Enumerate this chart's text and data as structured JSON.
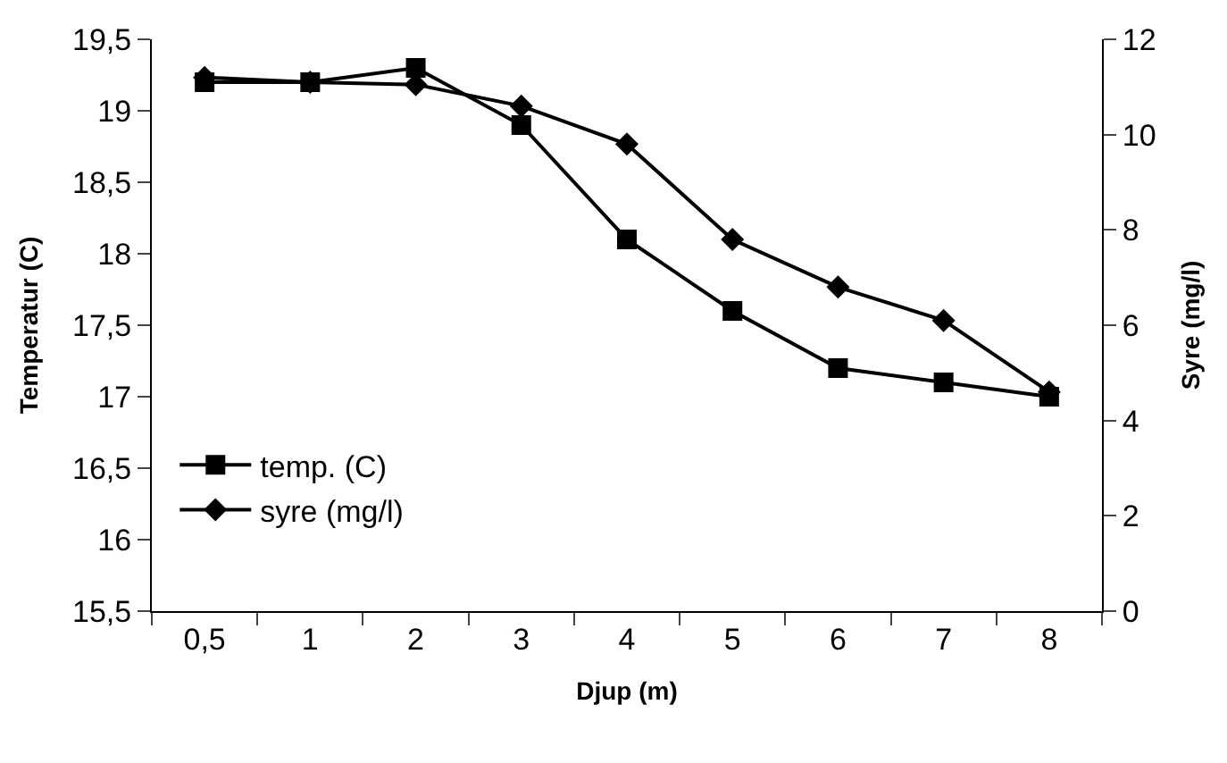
{
  "chart_data": {
    "type": "line",
    "xlabel": "Djup (m)",
    "ylabel": "Temperatur (C)",
    "y2label": "Syre (mg/l)",
    "categories": [
      "0,5",
      "1",
      "2",
      "3",
      "4",
      "5",
      "6",
      "7",
      "8"
    ],
    "series": [
      {
        "name": "temp. (C)",
        "color": "#000000",
        "marker": "square",
        "values": [
          19.2,
          19.2,
          19.3,
          18.9,
          18.1,
          17.6,
          17.2,
          17.1,
          17.0
        ]
      },
      {
        "name": "syre (mg/l)",
        "color": "#000000",
        "marker": "diamond",
        "axis": "y2",
        "values": [
          11.2,
          11.1,
          11.05,
          10.6,
          9.8,
          7.8,
          6.8,
          6.1,
          4.6
        ]
      }
    ],
    "ylim": [
      15.5,
      19.5
    ],
    "yticks": [
      {
        "value": 15.5,
        "label": "15,5"
      },
      16,
      {
        "value": 16.5,
        "label": "16,5"
      },
      17,
      {
        "value": 17.5,
        "label": "17,5"
      },
      18,
      {
        "value": 18.5,
        "label": "18,5"
      },
      19,
      {
        "value": 19.5,
        "label": "19,5"
      }
    ],
    "y2lim": [
      0,
      12
    ],
    "y2ticks": [
      0,
      2,
      4,
      6,
      8,
      10,
      12
    ],
    "legend": "bottom left",
    "line_style": "solid"
  }
}
